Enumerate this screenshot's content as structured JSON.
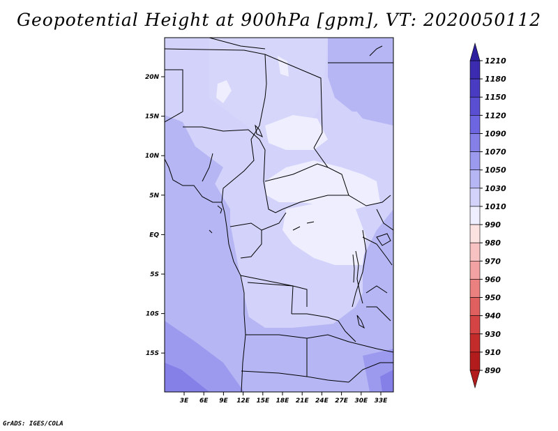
{
  "title": "Geopotential Height at 900hPa [gpm], VT: 2020050112",
  "footer": "GrADS: IGES/COLA",
  "map": {
    "lat_labels": [
      "20N",
      "15N",
      "10N",
      "5N",
      "EQ",
      "5S",
      "10S",
      "15S"
    ],
    "lon_labels": [
      "3E",
      "6E",
      "9E",
      "12E",
      "15E",
      "18E",
      "21E",
      "24E",
      "27E",
      "30E",
      "33E"
    ]
  },
  "colorbar": {
    "levels": [
      "1210",
      "1180",
      "1150",
      "1120",
      "1090",
      "1070",
      "1050",
      "1030",
      "1010",
      "990",
      "980",
      "970",
      "960",
      "950",
      "940",
      "930",
      "910",
      "890"
    ],
    "colors": [
      "#2d1f9e",
      "#3b2bb0",
      "#4a3cc2",
      "#5a4fd2",
      "#6e66e0",
      "#8480e8",
      "#9c9aef",
      "#b6b6f4",
      "#d2d2fa",
      "#eeeefe",
      "#fde2e2",
      "#f8c2c2",
      "#f2a2a2",
      "#ea8080",
      "#e06060",
      "#d44444",
      "#c42c2c",
      "#b21c1c"
    ]
  }
}
